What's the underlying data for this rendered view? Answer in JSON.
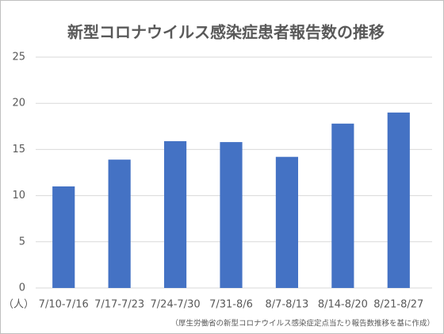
{
  "chart_data": {
    "type": "bar",
    "title": "新型コロナウイルス感染症患者報告数の推移",
    "unit_label": "（人）",
    "note": "（厚生労働省の新型コロナウイルス感染症定点当たり報告数推移を基に作成）",
    "categories": [
      "7/10-7/16",
      "7/17-7/23",
      "7/24-7/30",
      "7/31-8/6",
      "8/7-8/13",
      "8/14-8/20",
      "8/21-8/27"
    ],
    "values": [
      11.0,
      13.9,
      15.9,
      15.8,
      14.2,
      17.8,
      19.0
    ],
    "color": "#4472c4",
    "ylim": [
      0,
      25
    ],
    "yticks": [
      0,
      5,
      10,
      15,
      20,
      25
    ],
    "grid": true
  }
}
